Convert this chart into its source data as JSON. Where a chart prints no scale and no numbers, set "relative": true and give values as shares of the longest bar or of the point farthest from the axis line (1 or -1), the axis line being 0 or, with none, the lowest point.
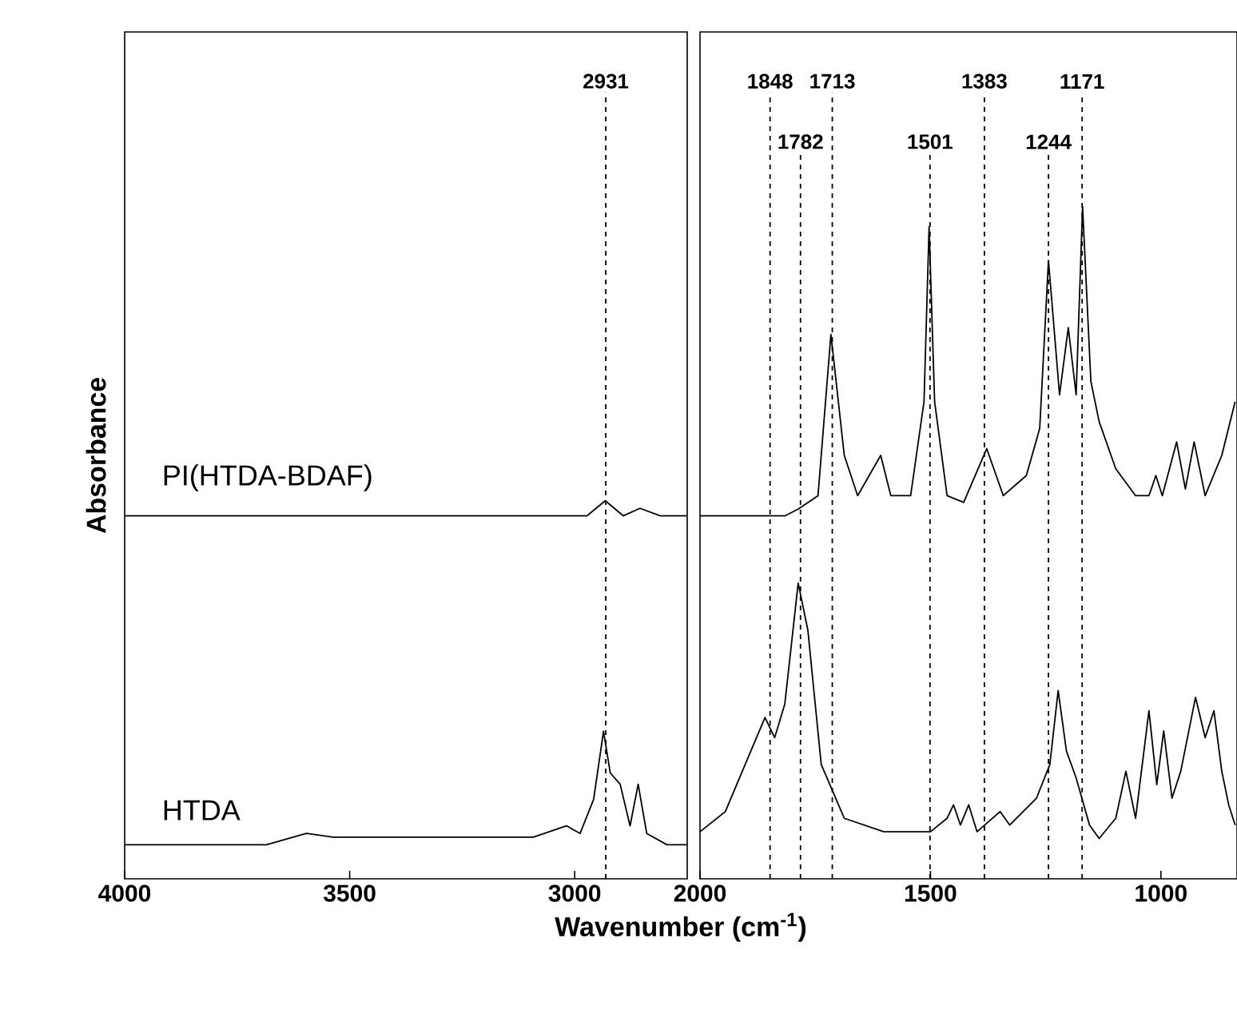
{
  "chart_data": [
    {
      "type": "line",
      "relative": true,
      "xlim": [
        4000,
        2750
      ],
      "xticks": [
        4000,
        3500,
        3000
      ],
      "tick_labels": "x",
      "ylabel": "Absorbance",
      "series": [
        {
          "name": "PI(HTDA-BDAF)",
          "color": "#000000",
          "x": [
            4000,
            3685,
            3240,
            2973,
            2932,
            2892,
            2855,
            2810,
            2751
          ],
          "values": [
            0.96,
            0.96,
            0.96,
            0.96,
            1.0,
            0.96,
            0.98,
            0.96,
            0.96
          ]
        },
        {
          "name": "HTDA",
          "color": "#000000",
          "x": [
            4000,
            3685,
            3596,
            3537,
            3092,
            3018,
            2988,
            2958,
            2936,
            2921,
            2899,
            2877,
            2859,
            2840,
            2795,
            2751
          ],
          "values": [
            0.09,
            0.09,
            0.12,
            0.11,
            0.11,
            0.14,
            0.12,
            0.21,
            0.39,
            0.28,
            0.25,
            0.14,
            0.25,
            0.12,
            0.09,
            0.09
          ]
        }
      ],
      "ref_lines": [
        {
          "axis": "x",
          "value": 2931,
          "label": "2931",
          "line_style": "dashed"
        }
      ]
    },
    {
      "type": "line",
      "relative": true,
      "xlim": [
        2000,
        835
      ],
      "xticks": [
        2000,
        1500,
        1000
      ],
      "tick_labels": "x",
      "xlabel": "Wavenumber (cm$^{-1}$)",
      "series": [
        {
          "color": "#000000",
          "x": [
            2000,
            1945,
            1816,
            1787,
            1744,
            1716,
            1687,
            1658,
            1608,
            1586,
            1543,
            1514,
            1503,
            1491,
            1464,
            1428,
            1378,
            1342,
            1292,
            1263,
            1244,
            1220,
            1201,
            1184,
            1170,
            1152,
            1134,
            1098,
            1055,
            1026,
            1011,
            997,
            966,
            947,
            928,
            904,
            868,
            839
          ],
          "values": [
            0.54,
            0.54,
            0.54,
            0.55,
            0.57,
            0.81,
            0.63,
            0.57,
            0.63,
            0.57,
            0.57,
            0.71,
            0.97,
            0.71,
            0.57,
            0.56,
            0.64,
            0.57,
            0.6,
            0.67,
            0.92,
            0.72,
            0.82,
            0.72,
            1.0,
            0.74,
            0.68,
            0.61,
            0.57,
            0.57,
            0.6,
            0.57,
            0.65,
            0.58,
            0.65,
            0.57,
            0.63,
            0.71
          ]
        },
        {
          "color": "#000000",
          "x": [
            2000,
            1945,
            1902,
            1859,
            1838,
            1816,
            1787,
            1766,
            1737,
            1687,
            1601,
            1500,
            1464,
            1450,
            1435,
            1417,
            1399,
            1349,
            1328,
            1299,
            1270,
            1241,
            1223,
            1205,
            1184,
            1155,
            1134,
            1098,
            1076,
            1055,
            1026,
            1009,
            994,
            976,
            957,
            925,
            904,
            885,
            868,
            853,
            839
          ],
          "values": [
            0.07,
            0.1,
            0.17,
            0.24,
            0.21,
            0.26,
            0.44,
            0.37,
            0.17,
            0.09,
            0.07,
            0.07,
            0.09,
            0.11,
            0.08,
            0.11,
            0.07,
            0.1,
            0.08,
            0.1,
            0.12,
            0.17,
            0.28,
            0.19,
            0.15,
            0.08,
            0.06,
            0.09,
            0.16,
            0.09,
            0.25,
            0.14,
            0.22,
            0.12,
            0.16,
            0.27,
            0.21,
            0.25,
            0.16,
            0.11,
            0.08
          ]
        }
      ],
      "ref_lines": [
        {
          "axis": "x",
          "value": 1848,
          "label": "1848",
          "line_style": "dashed"
        },
        {
          "axis": "x",
          "value": 1782,
          "label": "1782",
          "line_style": "dashed"
        },
        {
          "axis": "x",
          "value": 1713,
          "label": "1713",
          "line_style": "dashed"
        },
        {
          "axis": "x",
          "value": 1501,
          "label": "1501",
          "line_style": "dashed"
        },
        {
          "axis": "x",
          "value": 1383,
          "label": "1383",
          "line_style": "dashed"
        },
        {
          "axis": "x",
          "value": 1244,
          "label": "1244",
          "line_style": "dashed"
        },
        {
          "axis": "x",
          "value": 1171,
          "label": "1171",
          "line_style": "dashed"
        }
      ]
    }
  ]
}
